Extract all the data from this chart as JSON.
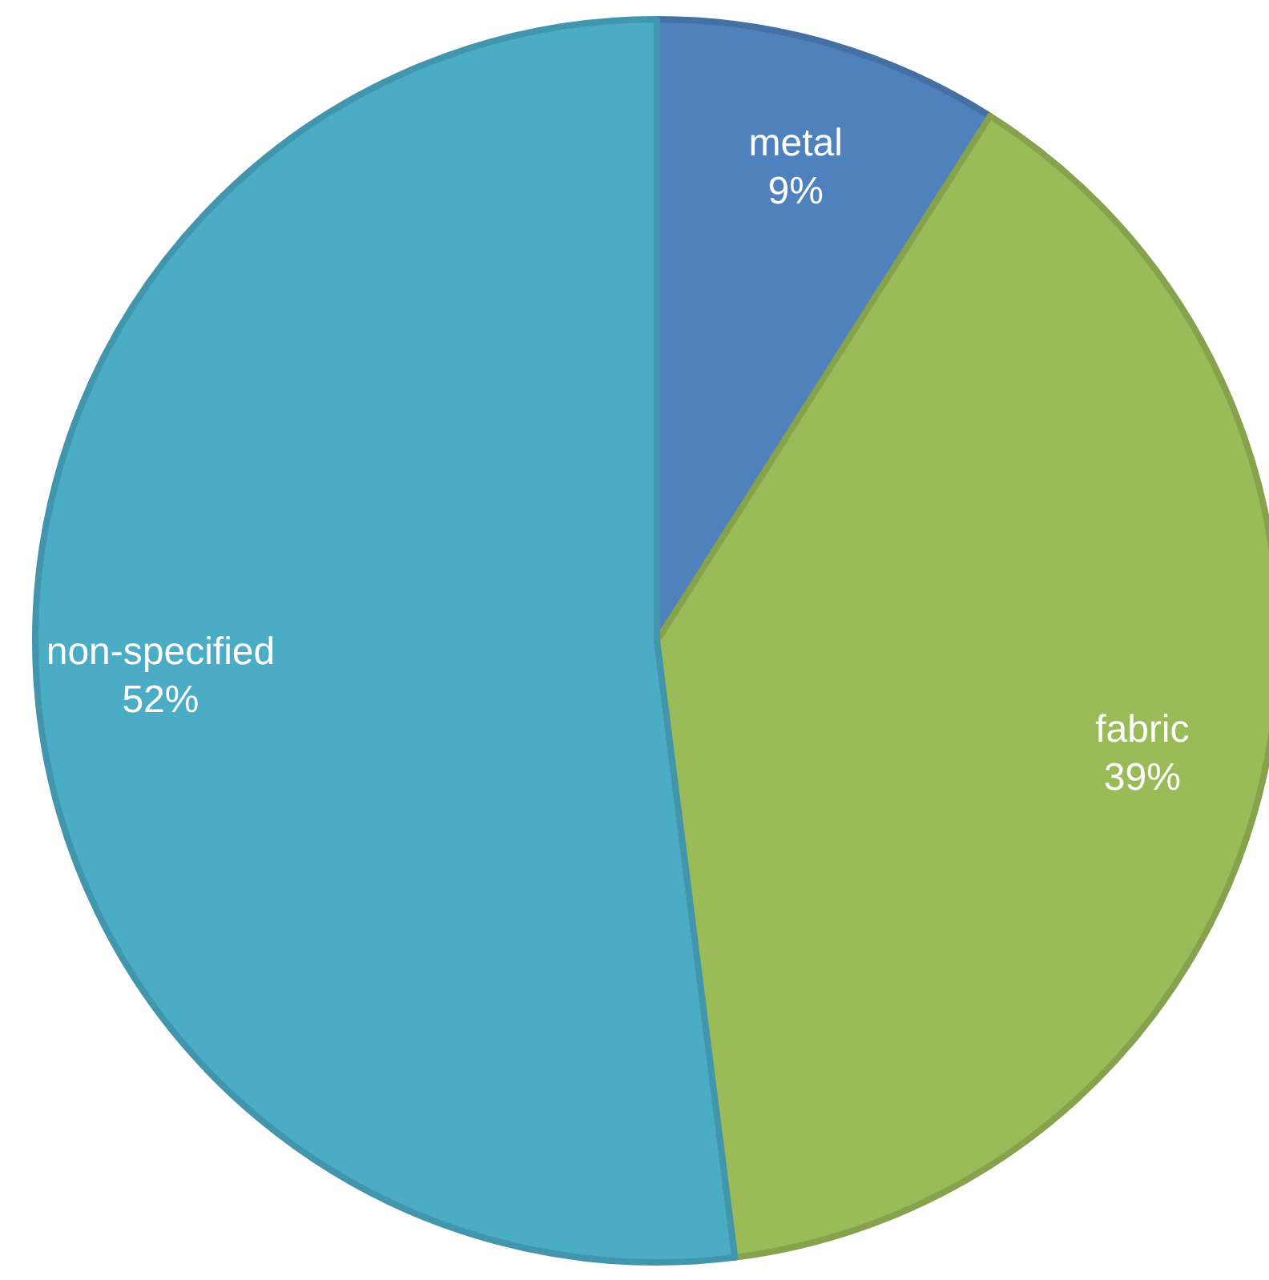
{
  "chart_data": {
    "type": "pie",
    "categories": [
      "metal",
      "fabric",
      "non-specified"
    ],
    "values": [
      9,
      39,
      52
    ],
    "colors": [
      "#4f81bd",
      "#9bbb59",
      "#4bacc6"
    ],
    "value_labels": [
      "9%",
      "39%",
      "52%"
    ]
  }
}
